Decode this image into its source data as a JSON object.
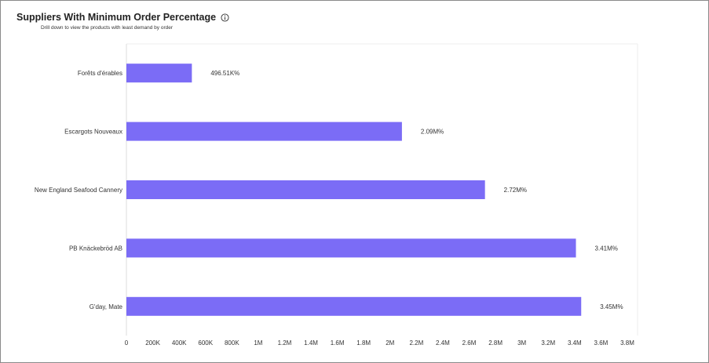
{
  "chart": {
    "title": "Suppliers With Minimum Order Percentage",
    "subtitle": "Drill down to view the products with least demand by order",
    "info_icon": "info-icon"
  },
  "colors": {
    "bar": "#7b6cf6",
    "text": "#333333",
    "axis": "#dddddd"
  },
  "chart_data": {
    "type": "bar",
    "orientation": "horizontal",
    "categories": [
      "Forêts d'érables",
      "Escargots Nouveaux",
      "New England Seafood Cannery",
      "PB Knäckebröd AB",
      "G'day, Mate"
    ],
    "values": [
      496510,
      2090000,
      2720000,
      3410000,
      3450000
    ],
    "data_labels": [
      "496.51K%",
      "2.09M%",
      "2.72M%",
      "3.41M%",
      "3.45M%"
    ],
    "xlim": [
      0,
      3800000
    ],
    "xticks": [
      0,
      200000,
      400000,
      600000,
      800000,
      1000000,
      1200000,
      1400000,
      1600000,
      1800000,
      2000000,
      2200000,
      2400000,
      2600000,
      2800000,
      3000000,
      3200000,
      3400000,
      3600000,
      3800000
    ],
    "xtick_labels": [
      "0",
      "200K",
      "400K",
      "600K",
      "800K",
      "1M",
      "1.2M",
      "1.4M",
      "1.6M",
      "1.8M",
      "2M",
      "2.2M",
      "2.4M",
      "2.6M",
      "2.8M",
      "3M",
      "3.2M",
      "3.4M",
      "3.6M",
      "3.8M"
    ],
    "grid": false,
    "legend": "none"
  }
}
